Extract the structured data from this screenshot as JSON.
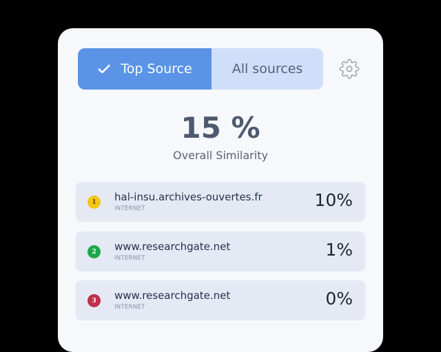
{
  "toggle": {
    "top_source": "Top Source",
    "all_sources": "All sources",
    "selected": "Top Source",
    "active_color": "#5b93e6",
    "inactive_color": "#cfdffa"
  },
  "settings_icon": "gear-icon",
  "summary": {
    "score": "15 %",
    "label": "Overall Similarity"
  },
  "sources": [
    {
      "rank": "1",
      "name": "hal-insu.archives-ouvertes.fr",
      "type": "INTERNET",
      "percent": "10%",
      "color": "#f5c518"
    },
    {
      "rank": "2",
      "name": "www.researchgate.net",
      "type": "INTERNET",
      "percent": "1%",
      "color": "#1fa64a"
    },
    {
      "rank": "3",
      "name": "www.researchgate.net",
      "type": "INTERNET",
      "percent": "0%",
      "color": "#c0304a"
    }
  ]
}
